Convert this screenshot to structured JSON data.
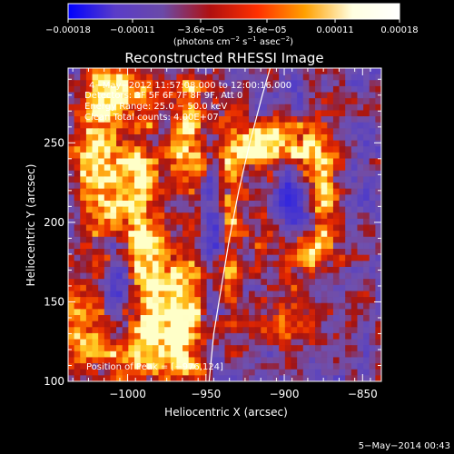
{
  "chart_data": {
    "type": "heatmap",
    "title": "Reconstructed RHESSI Image",
    "xlabel": "Heliocentric X (arcsec)",
    "ylabel": "Heliocentric Y (arcsec)",
    "xlim": [
      -1038,
      -838
    ],
    "ylim": [
      100,
      297
    ],
    "xticks": [
      -1000,
      -950,
      -900,
      -850
    ],
    "xtick_labels": [
      "−1000",
      "−950",
      "−900",
      "−850"
    ],
    "yticks": [
      100,
      150,
      200,
      250
    ],
    "ytick_labels": [
      "100",
      "150",
      "200",
      "250"
    ],
    "colorbar": {
      "range": [
        -0.00018,
        0.00018
      ],
      "ticks": [
        -0.00018,
        -0.00011,
        -3.6e-05,
        3.6e-05,
        0.00011,
        0.00018
      ],
      "tick_labels": [
        "−0.00018",
        "−0.00011",
        "−3.6e−05",
        "3.6e−05",
        "0.00011",
        "0.00018"
      ],
      "unit_prefix": "(photons cm",
      "unit_exp1": "−2",
      "unit_mid": " s",
      "unit_exp2": "−1",
      "unit_mid2": " asec",
      "unit_exp3": "−2",
      "unit_suffix": ")",
      "colors": [
        "#0000ff",
        "#5a3cc8",
        "#6a4aa8",
        "#b01010",
        "#ff3000",
        "#ffa000",
        "#ffffe0",
        "#ffffff"
      ]
    },
    "info": {
      "line1": "4−May−2012 11:57:08.000 to 12:00:16.000",
      "line2": "Detectors: 3F 5F 6F 7F 8F 9F, Att 0",
      "line3": "Energy Range: 25.0 − 50.0 keV",
      "line4": "Clean    Total counts: 4.00E+07"
    },
    "peak_label": "Position of Peak = [−976,124]",
    "limb_line": [
      [
        -948,
        100
      ],
      [
        -945,
        130
      ],
      [
        -940,
        160
      ],
      [
        -935,
        190
      ],
      [
        -929,
        220
      ],
      [
        -922,
        250
      ],
      [
        -914,
        280
      ],
      [
        -909,
        297
      ]
    ],
    "bright_regions": [
      {
        "x": -1018,
        "y": 240,
        "sx": 12,
        "sy": 40,
        "v": 1.0
      },
      {
        "x": -990,
        "y": 200,
        "sx": 10,
        "sy": 45,
        "v": 0.95
      },
      {
        "x": -975,
        "y": 135,
        "sx": 12,
        "sy": 25,
        "v": 1.0
      },
      {
        "x": -960,
        "y": 150,
        "sx": 8,
        "sy": 30,
        "v": 0.75
      },
      {
        "x": -958,
        "y": 255,
        "sx": 10,
        "sy": 30,
        "v": 0.85
      },
      {
        "x": -1030,
        "y": 130,
        "sx": 10,
        "sy": 20,
        "v": 0.8
      },
      {
        "x": -1000,
        "y": 115,
        "sx": 12,
        "sy": 12,
        "v": 0.7
      },
      {
        "x": -935,
        "y": 200,
        "sx": 6,
        "sy": 40,
        "v": 0.8
      },
      {
        "x": -925,
        "y": 245,
        "sx": 12,
        "sy": 10,
        "v": 0.6
      },
      {
        "x": -900,
        "y": 250,
        "sx": 20,
        "sy": 10,
        "v": 0.85
      },
      {
        "x": -878,
        "y": 220,
        "sx": 8,
        "sy": 25,
        "v": 0.95
      },
      {
        "x": -885,
        "y": 180,
        "sx": 12,
        "sy": 10,
        "v": 0.7
      },
      {
        "x": -900,
        "y": 140,
        "sx": 15,
        "sy": 12,
        "v": 0.6
      },
      {
        "x": -910,
        "y": 200,
        "sx": 8,
        "sy": 20,
        "v": 0.55
      },
      {
        "x": -1005,
        "y": 280,
        "sx": 12,
        "sy": 10,
        "v": 0.7
      }
    ],
    "dark_regions": [
      {
        "x": -895,
        "y": 210,
        "sx": 10,
        "sy": 14,
        "v": 1.0
      },
      {
        "x": -1005,
        "y": 165,
        "sx": 6,
        "sy": 20,
        "v": 0.6
      },
      {
        "x": -945,
        "y": 210,
        "sx": 5,
        "sy": 35,
        "v": 0.7
      }
    ],
    "timestamp": "5−May−2014 00:43"
  }
}
